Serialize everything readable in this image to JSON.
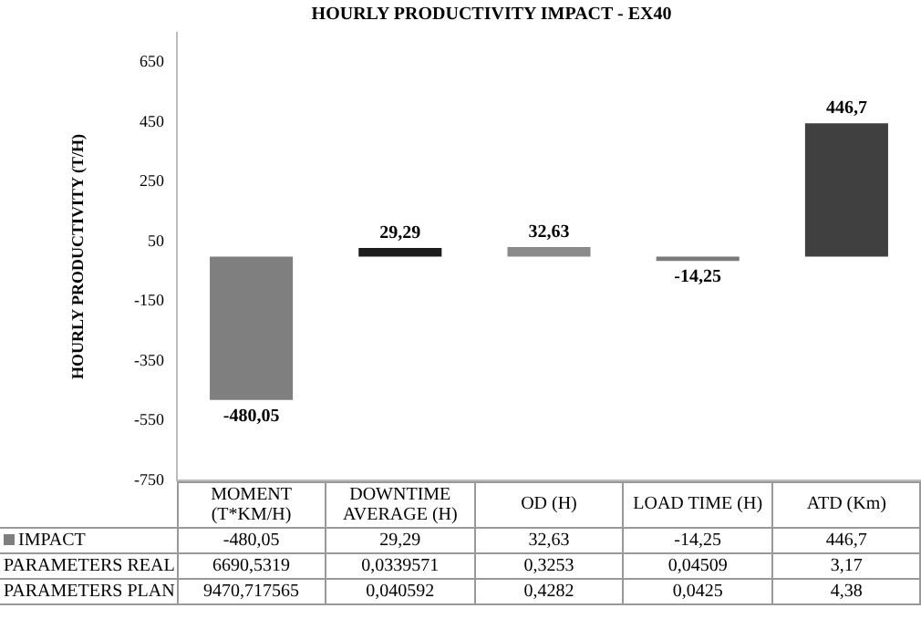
{
  "chart_data": {
    "type": "bar",
    "title": "HOURLY PRODUCTIVITY IMPACT - EX40",
    "ylabel": "HOURLY PRODUCTIVITY (T/H)",
    "categories": [
      "MOMENT (T*KM/H)",
      "DOWNTIME AVERAGE (H)",
      "OD (H)",
      "LOAD TIME (H)",
      "ATD (Km)"
    ],
    "series": [
      {
        "name": "IMPACT",
        "color": "#7f7f7f",
        "colors": [
          "#7f7f7f",
          "#1c1c1c",
          "#8a8a8a",
          "#7a7a7a",
          "#404040"
        ],
        "values": [
          -480.05,
          29.29,
          32.63,
          -14.25,
          446.7
        ],
        "value_labels": [
          "-480,05",
          "29,29",
          "32,63",
          "-14,25",
          "446,7"
        ]
      }
    ],
    "ylim": [
      -750,
      750
    ],
    "yticks": [
      -750,
      -550,
      -350,
      -150,
      50,
      250,
      450,
      650
    ],
    "grid": false,
    "legend": "bottom",
    "tick_labels": "y",
    "annotations": [
      "PARAMETERS REAL",
      "6690,5319",
      "0,0339571",
      "0,3253",
      "0,04509",
      "3,17",
      "PARAMETERS PLAN",
      "9470,717565",
      "0,040592",
      "0,4282",
      "0,0425",
      "4,38"
    ]
  }
}
